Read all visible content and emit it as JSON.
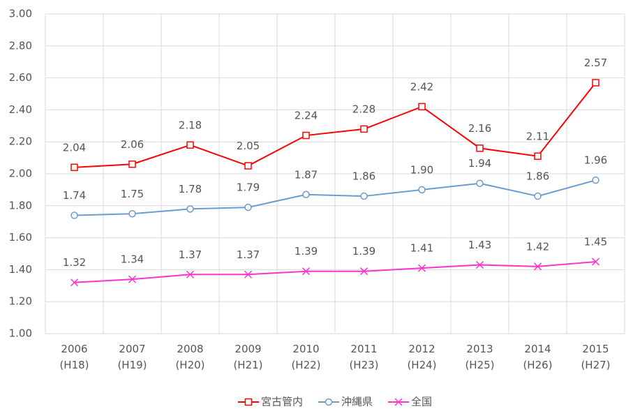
{
  "chart_data": {
    "type": "line",
    "categories": [
      [
        "2006",
        "(H18)"
      ],
      [
        "2007",
        "(H19)"
      ],
      [
        "2008",
        "(H20)"
      ],
      [
        "2009",
        "(H21)"
      ],
      [
        "2010",
        "(H22)"
      ],
      [
        "2011",
        "(H23)"
      ],
      [
        "2012",
        "(H24)"
      ],
      [
        "2013",
        "(H25)"
      ],
      [
        "2014",
        "(H26)"
      ],
      [
        "2015",
        "(H27)"
      ]
    ],
    "series": [
      {
        "name": "宮古管内",
        "color": "#ff0000",
        "marker": "square",
        "values": [
          2.04,
          2.06,
          2.18,
          2.05,
          2.24,
          2.28,
          2.42,
          2.16,
          2.11,
          2.57
        ],
        "value_labels": [
          "2.04",
          "2.06",
          "2.18",
          "2.05",
          "2.24",
          "2.28",
          "2.42",
          "2.16",
          "2.11",
          "2.57"
        ]
      },
      {
        "name": "沖縄県",
        "color": "#6a9ccf",
        "marker": "circle",
        "values": [
          1.74,
          1.75,
          1.78,
          1.79,
          1.87,
          1.86,
          1.9,
          1.94,
          1.86,
          1.96
        ],
        "value_labels": [
          "1.74",
          "1.75",
          "1.78",
          "1.79",
          "1.87",
          "1.86",
          "1.90",
          "1.94",
          "1.86",
          "1.96"
        ]
      },
      {
        "name": "全国",
        "color": "#ff33cc",
        "marker": "x",
        "values": [
          1.32,
          1.34,
          1.37,
          1.37,
          1.39,
          1.39,
          1.41,
          1.43,
          1.42,
          1.45
        ],
        "value_labels": [
          "1.32",
          "1.34",
          "1.37",
          "1.37",
          "1.39",
          "1.39",
          "1.41",
          "1.43",
          "1.42",
          "1.45"
        ]
      }
    ],
    "ylim": [
      1,
      3
    ],
    "yticks": [
      {
        "value": 1,
        "label": "1.00"
      },
      {
        "value": 1.2,
        "label": "1.20"
      },
      {
        "value": 1.4,
        "label": "1.40"
      },
      {
        "value": 1.6,
        "label": "1.60"
      },
      {
        "value": 1.8,
        "label": "1.80"
      },
      {
        "value": 2,
        "label": "2.00"
      },
      {
        "value": 2.2,
        "label": "2.20"
      },
      {
        "value": 2.4,
        "label": "2.40"
      },
      {
        "value": 2.6,
        "label": "2.60"
      },
      {
        "value": 2.8,
        "label": "2.80"
      },
      {
        "value": 3,
        "label": "3.00"
      }
    ],
    "grid": true,
    "legend": "bottom"
  }
}
